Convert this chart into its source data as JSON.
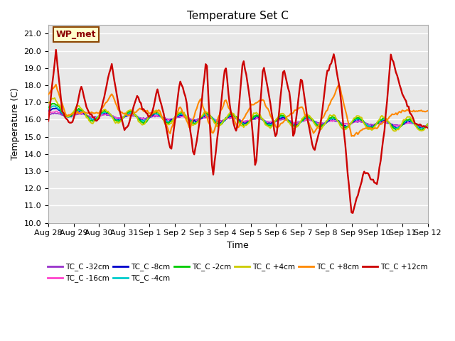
{
  "title": "Temperature Set C",
  "xlabel": "Time",
  "ylabel": "Temperature (C)",
  "ylim": [
    10.0,
    21.5
  ],
  "yticks": [
    10.0,
    11.0,
    12.0,
    13.0,
    14.0,
    15.0,
    16.0,
    17.0,
    18.0,
    19.0,
    20.0,
    21.0
  ],
  "annotation_text": "WP_met",
  "annotation_bg": "#ffffcc",
  "annotation_edge": "#8B4500",
  "series": [
    {
      "label": "TC_C -32cm",
      "color": "#9933cc"
    },
    {
      "label": "TC_C -16cm",
      "color": "#ff44cc"
    },
    {
      "label": "TC_C -8cm",
      "color": "#0000cc"
    },
    {
      "label": "TC_C -4cm",
      "color": "#00cccc"
    },
    {
      "label": "TC_C -2cm",
      "color": "#00cc00"
    },
    {
      "label": "TC_C +4cm",
      "color": "#cccc00"
    },
    {
      "label": "TC_C +8cm",
      "color": "#ff8800"
    },
    {
      "label": "TC_C +12cm",
      "color": "#cc0000"
    }
  ],
  "xtick_labels": [
    "Aug 28",
    "Aug 29",
    "Aug 30",
    "Aug 31",
    "Sep 1",
    "Sep 2",
    "Sep 3",
    "Sep 4",
    "Sep 5",
    "Sep 6",
    "Sep 7",
    "Sep 8",
    "Sep 9",
    "Sep 10",
    "Sep 11",
    "Sep 12"
  ]
}
